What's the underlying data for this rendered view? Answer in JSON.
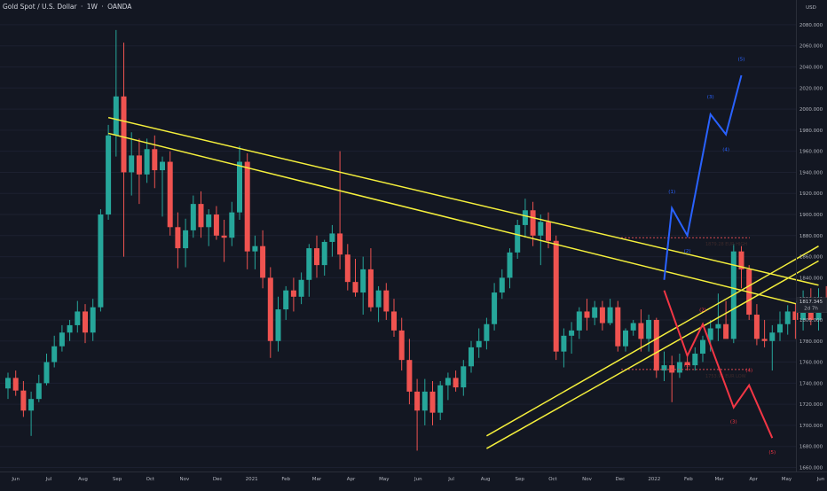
{
  "header": {
    "symbol": "Gold Spot / U.S. Dollar",
    "separator": "·",
    "interval": "1W",
    "exchange": "OANDA"
  },
  "colors": {
    "background": "#131722",
    "up": "#26a69a",
    "down": "#ef5350",
    "trendline": "#f5f03c",
    "bull_path": "#2962ff",
    "bear_path": "#f23645",
    "axis_text": "#b2b5be"
  },
  "chart_data": {
    "type": "candlestick",
    "instrument": "Gold Spot / U.S. Dollar",
    "interval": "1W",
    "y_axis": {
      "currency": "USD",
      "ticks": [
        1660,
        1680,
        1700,
        1720,
        1740,
        1760,
        1780,
        1800,
        1820,
        1840,
        1860,
        1880,
        1900,
        1920,
        1940,
        1960,
        1980,
        2000,
        2020,
        2040,
        2060,
        2080
      ],
      "tick_labels": [
        "1660.000",
        "1680.000",
        "1700.000",
        "1720.000",
        "1740.000",
        "1760.000",
        "1780.000",
        "1800.000",
        "1820.000",
        "1840.000",
        "1860.000",
        "1880.000",
        "1900.000",
        "1920.000",
        "1940.000",
        "1960.000",
        "1980.000",
        "2000.000",
        "2020.000",
        "2040.000",
        "2060.000",
        "2080.000"
      ],
      "range": [
        1652,
        2092
      ]
    },
    "x_axis": {
      "labels": [
        "Jun",
        "Jul",
        "Aug",
        "Sep",
        "Oct",
        "Nov",
        "Dec",
        "2021",
        "Feb",
        "Mar",
        "Apr",
        "May",
        "Jun",
        "Jul",
        "Aug",
        "Sep",
        "Oct",
        "Nov",
        "Dec",
        "2022",
        "Feb",
        "Mar",
        "Apr",
        "May",
        "Jun"
      ],
      "first_bar": "2020-05-25",
      "bar_interval_days": 7
    },
    "last_price": {
      "value": "1817.345",
      "countdown": "2d 7h"
    },
    "candles_ohlc": [
      [
        1735,
        1750,
        1725,
        1745
      ],
      [
        1745,
        1752,
        1728,
        1733
      ],
      [
        1733,
        1742,
        1708,
        1714
      ],
      [
        1714,
        1732,
        1690,
        1725
      ],
      [
        1725,
        1748,
        1722,
        1740
      ],
      [
        1740,
        1768,
        1738,
        1760
      ],
      [
        1760,
        1785,
        1755,
        1775
      ],
      [
        1775,
        1795,
        1770,
        1788
      ],
      [
        1788,
        1800,
        1780,
        1795
      ],
      [
        1795,
        1818,
        1788,
        1808
      ],
      [
        1808,
        1815,
        1778,
        1788
      ],
      [
        1788,
        1820,
        1780,
        1812
      ],
      [
        1812,
        1905,
        1808,
        1900
      ],
      [
        1900,
        1985,
        1895,
        1975
      ],
      [
        1975,
        2075,
        1955,
        2012
      ],
      [
        2012,
        2063,
        1860,
        1940
      ],
      [
        1940,
        1978,
        1918,
        1956
      ],
      [
        1956,
        1972,
        1910,
        1938
      ],
      [
        1938,
        1972,
        1930,
        1962
      ],
      [
        1962,
        1975,
        1925,
        1942
      ],
      [
        1942,
        1955,
        1898,
        1950
      ],
      [
        1950,
        1960,
        1880,
        1888
      ],
      [
        1888,
        1902,
        1849,
        1868
      ],
      [
        1868,
        1896,
        1850,
        1885
      ],
      [
        1885,
        1918,
        1878,
        1910
      ],
      [
        1910,
        1922,
        1878,
        1888
      ],
      [
        1888,
        1905,
        1870,
        1900
      ],
      [
        1900,
        1908,
        1876,
        1880
      ],
      [
        1880,
        1895,
        1855,
        1878
      ],
      [
        1878,
        1912,
        1870,
        1902
      ],
      [
        1902,
        1965,
        1895,
        1950
      ],
      [
        1950,
        1958,
        1848,
        1865
      ],
      [
        1865,
        1880,
        1848,
        1870
      ],
      [
        1870,
        1885,
        1830,
        1840
      ],
      [
        1840,
        1850,
        1764,
        1780
      ],
      [
        1780,
        1822,
        1770,
        1810
      ],
      [
        1810,
        1832,
        1800,
        1828
      ],
      [
        1828,
        1840,
        1808,
        1822
      ],
      [
        1822,
        1845,
        1815,
        1838
      ],
      [
        1838,
        1872,
        1822,
        1868
      ],
      [
        1868,
        1880,
        1840,
        1852
      ],
      [
        1852,
        1876,
        1842,
        1874
      ],
      [
        1874,
        1890,
        1860,
        1882
      ],
      [
        1882,
        1960,
        1848,
        1862
      ],
      [
        1862,
        1872,
        1828,
        1836
      ],
      [
        1836,
        1858,
        1822,
        1826
      ],
      [
        1826,
        1860,
        1805,
        1848
      ],
      [
        1848,
        1868,
        1808,
        1812
      ],
      [
        1812,
        1832,
        1798,
        1828
      ],
      [
        1828,
        1835,
        1800,
        1808
      ],
      [
        1808,
        1820,
        1784,
        1790
      ],
      [
        1790,
        1802,
        1752,
        1762
      ],
      [
        1762,
        1782,
        1720,
        1732
      ],
      [
        1732,
        1744,
        1676,
        1714
      ],
      [
        1714,
        1744,
        1700,
        1732
      ],
      [
        1732,
        1742,
        1700,
        1712
      ],
      [
        1712,
        1742,
        1705,
        1738
      ],
      [
        1738,
        1750,
        1724,
        1745
      ],
      [
        1745,
        1752,
        1732,
        1736
      ],
      [
        1736,
        1762,
        1728,
        1756
      ],
      [
        1756,
        1780,
        1750,
        1774
      ],
      [
        1774,
        1792,
        1764,
        1780
      ],
      [
        1780,
        1802,
        1772,
        1796
      ],
      [
        1796,
        1835,
        1790,
        1826
      ],
      [
        1826,
        1848,
        1820,
        1840
      ],
      [
        1840,
        1868,
        1830,
        1864
      ],
      [
        1864,
        1895,
        1858,
        1890
      ],
      [
        1890,
        1915,
        1878,
        1904
      ],
      [
        1904,
        1912,
        1870,
        1880
      ],
      [
        1880,
        1900,
        1852,
        1893
      ],
      [
        1893,
        1902,
        1868,
        1875
      ],
      [
        1875,
        1880,
        1762,
        1770
      ],
      [
        1770,
        1792,
        1755,
        1785
      ],
      [
        1785,
        1798,
        1768,
        1790
      ],
      [
        1790,
        1812,
        1782,
        1808
      ],
      [
        1808,
        1820,
        1790,
        1802
      ],
      [
        1802,
        1818,
        1795,
        1812
      ],
      [
        1812,
        1818,
        1790,
        1797
      ],
      [
        1797,
        1820,
        1795,
        1812
      ],
      [
        1812,
        1818,
        1770,
        1775
      ],
      [
        1775,
        1792,
        1770,
        1790
      ],
      [
        1790,
        1800,
        1785,
        1797
      ],
      [
        1797,
        1810,
        1770,
        1782
      ],
      [
        1782,
        1805,
        1770,
        1800
      ],
      [
        1800,
        1802,
        1745,
        1752
      ],
      [
        1752,
        1770,
        1742,
        1757
      ],
      [
        1757,
        1766,
        1722,
        1750
      ],
      [
        1750,
        1768,
        1745,
        1760
      ],
      [
        1760,
        1768,
        1752,
        1757
      ],
      [
        1757,
        1774,
        1752,
        1768
      ],
      [
        1768,
        1785,
        1760,
        1781
      ],
      [
        1781,
        1800,
        1770,
        1792
      ],
      [
        1792,
        1825,
        1780,
        1796
      ],
      [
        1796,
        1818,
        1785,
        1782
      ],
      [
        1782,
        1872,
        1778,
        1865
      ],
      [
        1865,
        1870,
        1830,
        1848
      ],
      [
        1848,
        1852,
        1800,
        1805
      ],
      [
        1805,
        1815,
        1776,
        1782
      ],
      [
        1782,
        1800,
        1774,
        1780
      ],
      [
        1780,
        1795,
        1752,
        1788
      ],
      [
        1788,
        1808,
        1780,
        1796
      ],
      [
        1796,
        1814,
        1786,
        1808
      ],
      [
        1808,
        1815,
        1782,
        1800
      ],
      [
        1800,
        1828,
        1790,
        1818
      ],
      [
        1818,
        1830,
        1795,
        1800
      ],
      [
        1800,
        1830,
        1790,
        1820
      ],
      [
        1820,
        1832,
        1812,
        1817
      ]
    ],
    "trendlines": [
      {
        "points": [
          [
            "2020-08-24",
            1992
          ],
          [
            "2022-05-30",
            1833
          ]
        ]
      },
      {
        "points": [
          [
            "2020-08-24",
            1977
          ],
          [
            "2022-05-30",
            1810
          ]
        ]
      },
      {
        "points": [
          [
            "2021-08-02",
            1690
          ],
          [
            "2022-05-30",
            1870
          ]
        ]
      },
      {
        "points": [
          [
            "2021-08-02",
            1678
          ],
          [
            "2022-05-30",
            1856
          ]
        ]
      }
    ],
    "levels": [
      {
        "y": 1878,
        "label": "1879.28 EUR HIGH"
      },
      {
        "y": 1753,
        "label": "1753.96 EUR LOW"
      }
    ],
    "wave_paths": [
      {
        "points": [
          [
            "2022-01-10",
            1838
          ],
          [
            "2022-01-17",
            1906
          ],
          [
            "2022-01-31",
            1880
          ],
          [
            "2022-02-21",
            1995
          ],
          [
            "2022-03-07",
            1976
          ],
          [
            "2022-03-21",
            2032
          ]
        ],
        "labels": [
          {
            "text": "(1)",
            "at": [
              "2022-01-17",
              1920
            ]
          },
          {
            "text": "(2)",
            "at": [
              "2022-01-31",
              1864
            ]
          },
          {
            "text": "(3)",
            "at": [
              "2022-02-21",
              2010
            ]
          },
          {
            "text": "(4)",
            "at": [
              "2022-03-07",
              1960
            ]
          },
          {
            "text": "(5)",
            "at": [
              "2022-03-21",
              2046
            ]
          }
        ]
      },
      {
        "points": [
          [
            "2022-01-10",
            1828
          ],
          [
            "2022-01-31",
            1766
          ],
          [
            "2022-02-14",
            1796
          ],
          [
            "2022-03-14",
            1717
          ],
          [
            "2022-03-28",
            1738
          ],
          [
            "2022-04-18",
            1688
          ]
        ],
        "labels": [
          {
            "text": "(1)",
            "at": [
              "2022-01-31",
              1756
            ]
          },
          {
            "text": "(2)",
            "at": [
              "2022-02-14",
              1808
            ]
          },
          {
            "text": "(3)",
            "at": [
              "2022-03-14",
              1702
            ]
          },
          {
            "text": "(4)",
            "at": [
              "2022-03-28",
              1751
            ]
          },
          {
            "text": "(5)",
            "at": [
              "2022-04-18",
              1673
            ]
          }
        ]
      }
    ]
  }
}
